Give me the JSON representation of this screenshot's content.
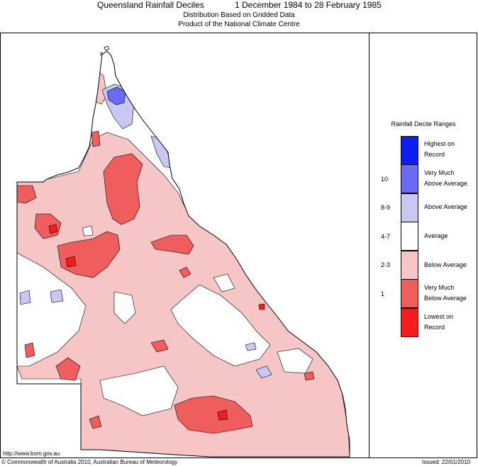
{
  "header": {
    "title": "Queensland Rainfall Deciles",
    "period": "1 December 1984 to 28 February 1985",
    "subtitle1": "Distribution Based on Gridded Data",
    "subtitle2": "Product of the National Climate Centre"
  },
  "legend": {
    "title": "Rainfall Decile Ranges",
    "items": [
      {
        "code": "",
        "line1": "Highest on",
        "line2": "Record",
        "color": "#0a1ff0"
      },
      {
        "code": "10",
        "line1": "Very Much",
        "line2": "Above Average",
        "color": "#6a6af2"
      },
      {
        "code": "8-9",
        "line1": "Above Average",
        "line2": "",
        "color": "#c8c8f2"
      },
      {
        "code": "4-7",
        "line1": "Average",
        "line2": "",
        "color": "#ffffff"
      },
      {
        "code": "2-3",
        "line1": "Below Average",
        "line2": "",
        "color": "#f6c6c6"
      },
      {
        "code": "1",
        "line1": "Very Much",
        "line2": "Below Average",
        "color": "#ef5d5d"
      },
      {
        "code": "",
        "line1": "Lowest on",
        "line2": "Record",
        "color": "#f31d1d"
      }
    ]
  },
  "footer": {
    "url": "http://www.bom.gov.au",
    "copyright": "© Commonwealth of Australia 2010, Australian Bureau of Meteorology",
    "issued": "Issued: 22/01/2010"
  },
  "colors": {
    "below_average": "#f6c6c6",
    "very_much_below": "#ef5d5d",
    "lowest_on_record": "#f31d1d",
    "above_average": "#c8c8f2",
    "very_much_above": "#6a6af2",
    "average": "#ffffff"
  }
}
